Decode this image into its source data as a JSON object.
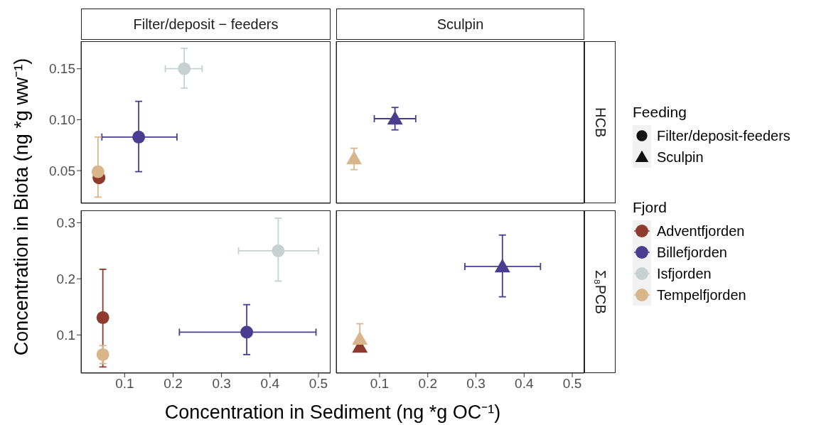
{
  "chart_data": [
    {
      "type": "scatter",
      "title": "Filter/deposit − feeders",
      "ylabel": "Concentration in Biota (ng *g ww⁻¹)",
      "marker": "circle",
      "legend": "right",
      "legend_title": "Fjord",
      "tick_labels": "y",
      "xlim": [
        0.01,
        0.525
      ],
      "xticks": [
        0.1,
        0.2,
        0.3,
        0.4,
        0.5
      ],
      "ylim": [
        0.018,
        0.177
      ],
      "yticks": [
        0.05,
        {
          "value": 0.1,
          "label": "0.10"
        },
        0.15
      ],
      "series": [
        {
          "name": "Adventfjorden",
          "color": "#8e3b2e",
          "x": [
            0.047
          ],
          "values": [
            0.043
          ],
          "errors": [
            null
          ],
          "xerrors": [
            null
          ]
        },
        {
          "name": "Billefjorden",
          "color": "#4a3d8f",
          "x": [
            0.129
          ],
          "values": [
            0.083
          ],
          "errors": [
            [
              0.049,
              0.118
            ]
          ],
          "xerrors": [
            [
              0.053,
              0.208
            ]
          ]
        },
        {
          "name": "Isfjorden",
          "color": "#c5d2d1",
          "x": [
            0.223
          ],
          "values": [
            0.15
          ],
          "errors": [
            [
              0.131,
              0.17
            ]
          ],
          "xerrors": [
            [
              0.184,
              0.26
            ]
          ]
        },
        {
          "name": "Tempelfjorden",
          "color": "#d8b68a",
          "x": [
            0.045
          ],
          "values": [
            0.049
          ],
          "errors": [
            [
              0.024,
              0.083
            ]
          ],
          "xerrors": [
            null
          ]
        }
      ]
    },
    {
      "type": "scatter",
      "title": "Sculpin",
      "y2label": "HCB",
      "marker": "triangle",
      "tick_labels": false,
      "xlim": [
        0.01,
        0.525
      ],
      "xticks": [
        0.1,
        0.2,
        0.3,
        0.4,
        0.5
      ],
      "ylim": [
        0.018,
        0.177
      ],
      "yticks": [
        0.05,
        0.1,
        0.15
      ],
      "series": [
        {
          "color": "#4a3d8f",
          "x": [
            0.132
          ],
          "values": [
            0.101
          ],
          "errors": [
            [
              0.09,
              0.112
            ]
          ],
          "xerrors": [
            [
              0.089,
              0.175
            ]
          ]
        },
        {
          "color": "#d8b68a",
          "x": [
            0.047
          ],
          "values": [
            0.062
          ],
          "errors": [
            [
              0.051,
              0.072
            ]
          ],
          "xerrors": [
            null
          ]
        }
      ]
    },
    {
      "type": "scatter",
      "xlabel": "Concentration in Sediment (ng *g OC⁻¹)",
      "marker": "circle",
      "xlim": [
        0.01,
        0.525
      ],
      "xticks": [
        0.1,
        0.2,
        0.3,
        0.4,
        0.5
      ],
      "ylim": [
        0.032,
        0.322
      ],
      "yticks": [
        0.1,
        0.2,
        0.3
      ],
      "series": [
        {
          "color": "#8e3b2e",
          "x": [
            0.055
          ],
          "values": [
            0.131
          ],
          "errors": [
            [
              0.043,
              0.217
            ]
          ],
          "xerrors": [
            null
          ]
        },
        {
          "color": "#4a3d8f",
          "x": [
            0.352
          ],
          "values": [
            0.105
          ],
          "errors": [
            [
              0.065,
              0.154
            ]
          ],
          "xerrors": [
            [
              0.213,
              0.495
            ]
          ]
        },
        {
          "color": "#c5d2d1",
          "x": [
            0.417
          ],
          "values": [
            0.25
          ],
          "errors": [
            [
              0.196,
              0.308
            ]
          ],
          "xerrors": [
            [
              0.335,
              0.5
            ]
          ]
        },
        {
          "color": "#d8b68a",
          "x": [
            0.055
          ],
          "values": [
            0.065
          ],
          "errors": [
            [
              0.049,
              0.081
            ]
          ],
          "xerrors": [
            null
          ]
        }
      ]
    },
    {
      "type": "scatter",
      "y2label": "Σ₈PCB",
      "marker": "triangle",
      "tick_labels": "x",
      "xlim": [
        0.01,
        0.525
      ],
      "xticks": [
        0.1,
        0.2,
        0.3,
        0.4,
        0.5
      ],
      "ylim": [
        0.032,
        0.322
      ],
      "yticks": [
        0.1,
        0.2,
        0.3
      ],
      "series": [
        {
          "color": "#8e3b2e",
          "x": [
            0.059
          ],
          "values": [
            0.079
          ],
          "errors": [
            [
              0.07,
              0.085
            ]
          ],
          "xerrors": [
            null
          ]
        },
        {
          "color": "#4a3d8f",
          "x": [
            0.355
          ],
          "values": [
            0.222
          ],
          "errors": [
            [
              0.168,
              0.278
            ]
          ],
          "xerrors": [
            [
              0.277,
              0.434
            ]
          ]
        },
        {
          "color": "#d8b68a",
          "x": [
            0.059
          ],
          "values": [
            0.093
          ],
          "errors": [
            [
              0.08,
              0.12
            ]
          ],
          "xerrors": [
            null
          ]
        }
      ]
    },
    {
      "type": "other",
      "title": "Feeding",
      "annotations": [
        "Filter/deposit-feeders",
        "Sculpin"
      ]
    }
  ]
}
